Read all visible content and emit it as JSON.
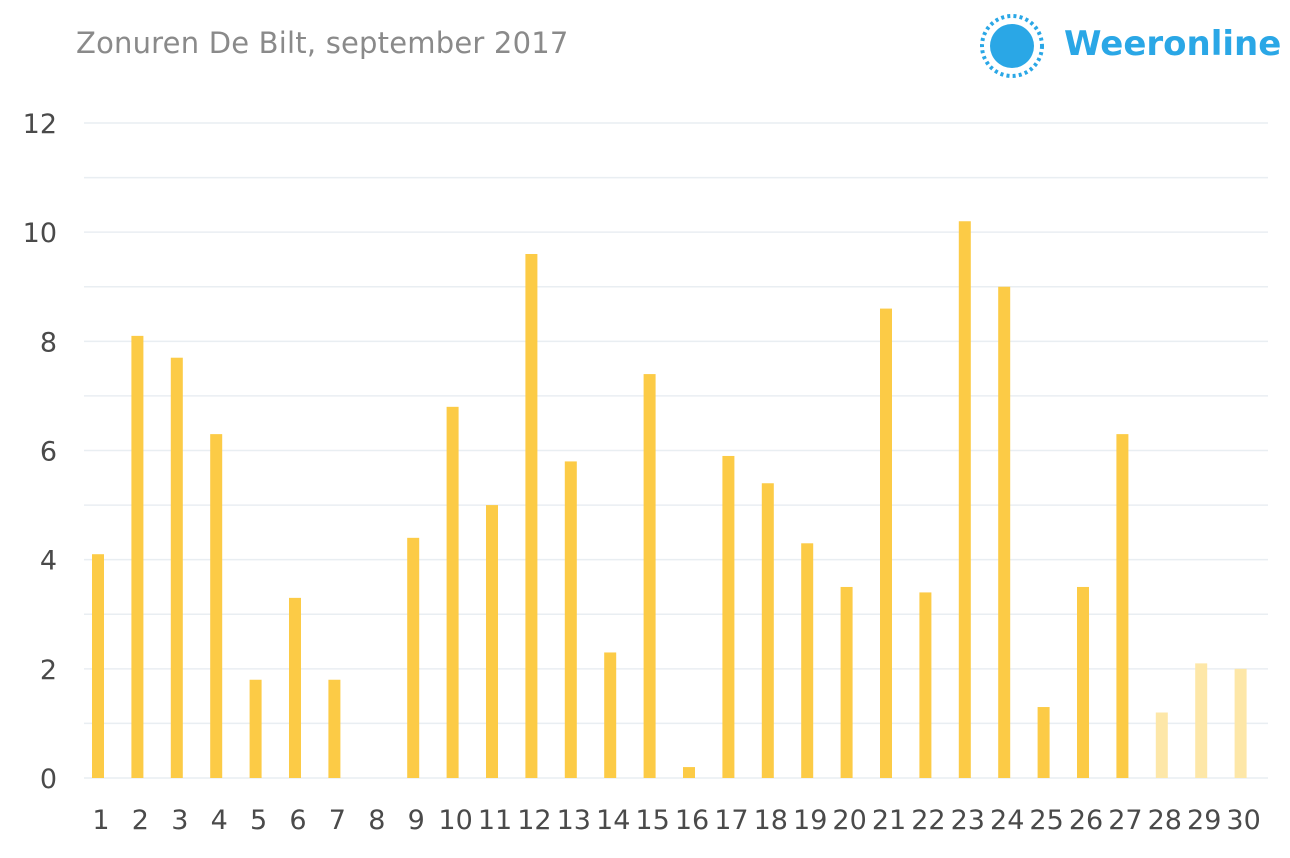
{
  "header": {
    "title": "Zonuren De Bilt, september 2017",
    "brand": "Weeronline",
    "logo_icon": "sun-icon"
  },
  "colors": {
    "bar": "#fccb46",
    "bar_forecast": "#fde7a8",
    "grid": "#e9eef2",
    "brand": "#2aa7e6"
  },
  "chart_data": {
    "type": "bar",
    "title": "Zonuren De Bilt, september 2017",
    "xlabel": "",
    "ylabel": "",
    "ylim": [
      0,
      12
    ],
    "yticks": [
      0,
      2,
      4,
      6,
      8,
      10,
      12
    ],
    "grid": true,
    "categories": [
      "1",
      "2",
      "3",
      "4",
      "5",
      "6",
      "7",
      "8",
      "9",
      "10",
      "11",
      "12",
      "13",
      "14",
      "15",
      "16",
      "17",
      "18",
      "19",
      "20",
      "21",
      "22",
      "23",
      "24",
      "25",
      "26",
      "27",
      "28",
      "29",
      "30"
    ],
    "values": [
      4.1,
      8.1,
      7.7,
      6.3,
      1.8,
      3.3,
      1.8,
      0,
      4.4,
      6.8,
      5.0,
      9.6,
      5.8,
      2.3,
      7.4,
      0.2,
      5.9,
      5.4,
      4.3,
      3.5,
      8.6,
      3.4,
      10.2,
      9.0,
      1.3,
      3.5,
      6.3,
      1.2,
      2.1,
      2.0
    ],
    "forecast_from_index": 27
  }
}
